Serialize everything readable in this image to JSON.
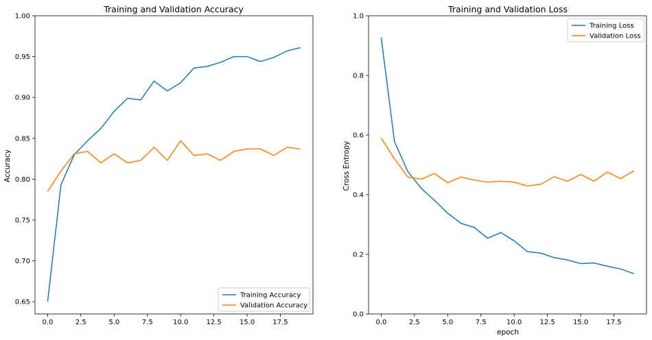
{
  "chart_data": [
    {
      "type": "line",
      "title": "Training and Validation Accuracy",
      "xlabel": "",
      "ylabel": "Accuracy",
      "xlim": [
        -0.95,
        19.95
      ],
      "ylim": [
        0.635,
        1.0
      ],
      "xticks": [
        0.0,
        2.5,
        5.0,
        7.5,
        10.0,
        12.5,
        15.0,
        17.5
      ],
      "xtick_labels": [
        "0.0",
        "2.5",
        "5.0",
        "7.5",
        "10.0",
        "12.5",
        "15.0",
        "17.5"
      ],
      "yticks": [
        0.65,
        0.7,
        0.75,
        0.8,
        0.85,
        0.9,
        0.95,
        1.0
      ],
      "ytick_labels": [
        "0.65",
        "0.70",
        "0.75",
        "0.80",
        "0.85",
        "0.90",
        "0.95",
        "1.00"
      ],
      "grid": false,
      "legend_position": "lower-right",
      "x": [
        0,
        1,
        2,
        3,
        4,
        5,
        6,
        7,
        8,
        9,
        10,
        11,
        12,
        13,
        14,
        15,
        16,
        17,
        18,
        19
      ],
      "series": [
        {
          "name": "Training Accuracy",
          "color": "#1f77b4",
          "values": [
            0.65,
            0.793,
            0.83,
            0.847,
            0.862,
            0.883,
            0.899,
            0.897,
            0.92,
            0.908,
            0.918,
            0.936,
            0.938,
            0.943,
            0.95,
            0.95,
            0.944,
            0.949,
            0.957,
            0.961
          ]
        },
        {
          "name": "Validation Accuracy",
          "color": "#ff7f0e",
          "values": [
            0.785,
            0.81,
            0.831,
            0.834,
            0.82,
            0.831,
            0.82,
            0.823,
            0.839,
            0.823,
            0.847,
            0.829,
            0.831,
            0.823,
            0.834,
            0.837,
            0.837,
            0.829,
            0.839,
            0.837
          ]
        }
      ]
    },
    {
      "type": "line",
      "title": "Training and Validation Loss",
      "xlabel": "epoch",
      "ylabel": "Cross Entropy",
      "xlim": [
        -0.95,
        19.95
      ],
      "ylim": [
        0.0,
        1.0
      ],
      "xticks": [
        0.0,
        2.5,
        5.0,
        7.5,
        10.0,
        12.5,
        15.0,
        17.5
      ],
      "xtick_labels": [
        "0.0",
        "2.5",
        "5.0",
        "7.5",
        "10.0",
        "12.5",
        "15.0",
        "17.5"
      ],
      "yticks": [
        0.0,
        0.2,
        0.4,
        0.6,
        0.8,
        1.0
      ],
      "ytick_labels": [
        "0.0",
        "0.2",
        "0.4",
        "0.6",
        "0.8",
        "1.0"
      ],
      "grid": false,
      "legend_position": "upper-right",
      "x": [
        0,
        1,
        2,
        3,
        4,
        5,
        6,
        7,
        8,
        9,
        10,
        11,
        12,
        13,
        14,
        15,
        16,
        17,
        18,
        19
      ],
      "series": [
        {
          "name": "Training Loss",
          "color": "#1f77b4",
          "values": [
            0.927,
            0.578,
            0.478,
            0.422,
            0.381,
            0.338,
            0.304,
            0.29,
            0.254,
            0.273,
            0.245,
            0.209,
            0.204,
            0.189,
            0.181,
            0.169,
            0.171,
            0.16,
            0.151,
            0.135
          ]
        },
        {
          "name": "Validation Loss",
          "color": "#ff7f0e",
          "values": [
            0.59,
            0.52,
            0.459,
            0.452,
            0.471,
            0.44,
            0.459,
            0.449,
            0.442,
            0.445,
            0.442,
            0.429,
            0.435,
            0.46,
            0.445,
            0.468,
            0.445,
            0.476,
            0.454,
            0.48
          ]
        }
      ]
    }
  ]
}
